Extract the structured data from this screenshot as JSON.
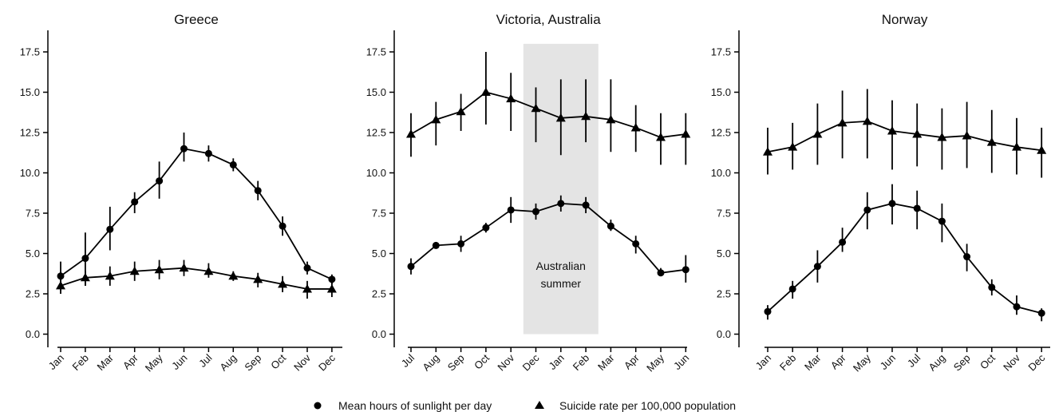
{
  "legend": {
    "circle_label": "Mean hours of sunlight per day",
    "triangle_label": "Suicide rate per 100,000 population",
    "placement": "bottom-center"
  },
  "colors": {
    "series": "#000000",
    "axis": "#000000",
    "shade": "#e4e4e4"
  },
  "chart_data": [
    {
      "type": "line",
      "title": "Greece",
      "categories": [
        "Jan",
        "Feb",
        "Mar",
        "Apr",
        "May",
        "Jun",
        "Jul",
        "Aug",
        "Sep",
        "Oct",
        "Nov",
        "Dec"
      ],
      "ylim": [
        0,
        18
      ],
      "yticks": [
        "0.0",
        "2.5",
        "5.0",
        "7.5",
        "10.0",
        "12.5",
        "15.0",
        "17.5"
      ],
      "grid": false,
      "series": [
        {
          "name": "Mean hours of sunlight per day",
          "marker": "circle",
          "values": [
            3.6,
            4.7,
            6.5,
            8.2,
            9.5,
            11.5,
            11.2,
            10.5,
            8.9,
            6.7,
            4.1,
            3.4
          ],
          "err_low": [
            2.7,
            3.0,
            5.2,
            7.5,
            8.4,
            10.7,
            10.7,
            10.1,
            8.3,
            6.1,
            3.7,
            3.1
          ],
          "err_high": [
            4.5,
            6.3,
            7.9,
            8.8,
            10.7,
            12.5,
            11.7,
            10.9,
            9.5,
            7.3,
            4.5,
            3.7
          ]
        },
        {
          "name": "Suicide rate per 100,000 population",
          "marker": "triangle",
          "values": [
            3.0,
            3.5,
            3.6,
            3.9,
            4.0,
            4.1,
            3.9,
            3.6,
            3.4,
            3.1,
            2.8,
            2.8
          ],
          "err_low": [
            2.5,
            3.0,
            3.0,
            3.3,
            3.4,
            3.6,
            3.5,
            3.3,
            2.9,
            2.6,
            2.2,
            2.3
          ],
          "err_high": [
            3.5,
            3.9,
            4.2,
            4.5,
            4.6,
            4.6,
            4.4,
            3.9,
            3.8,
            3.6,
            3.3,
            3.3
          ]
        }
      ]
    },
    {
      "type": "line",
      "title": "Victoria, Australia",
      "categories": [
        "Jul",
        "Aug",
        "Sep",
        "Oct",
        "Nov",
        "Dec",
        "Jan",
        "Feb",
        "Mar",
        "Apr",
        "May",
        "Jun"
      ],
      "ylim": [
        0,
        18
      ],
      "yticks": [
        "0.0",
        "2.5",
        "5.0",
        "7.5",
        "10.0",
        "12.5",
        "15.0",
        "17.5"
      ],
      "grid": false,
      "shaded_region": {
        "from": "Dec",
        "to": "Feb",
        "label_lines": [
          "Australian",
          "summer"
        ]
      },
      "series": [
        {
          "name": "Mean hours of sunlight per day",
          "marker": "circle",
          "values": [
            4.2,
            5.5,
            5.6,
            6.6,
            7.7,
            7.6,
            8.1,
            8.0,
            6.7,
            5.6,
            3.8,
            4.0
          ],
          "err_low": [
            3.7,
            5.5,
            5.1,
            6.3,
            6.9,
            7.1,
            7.6,
            7.5,
            6.4,
            5.0,
            3.6,
            3.2
          ],
          "err_high": [
            4.7,
            5.5,
            6.1,
            6.9,
            8.5,
            8.1,
            8.6,
            8.5,
            7.1,
            6.1,
            4.1,
            4.9
          ]
        },
        {
          "name": "Suicide rate per 100,000 population",
          "marker": "triangle",
          "values": [
            12.4,
            13.3,
            13.8,
            15.0,
            14.6,
            14.0,
            13.4,
            13.5,
            13.3,
            12.8,
            12.2,
            12.4
          ],
          "err_low": [
            11.0,
            11.7,
            12.6,
            13.0,
            12.6,
            11.9,
            11.1,
            11.9,
            11.3,
            11.3,
            10.5,
            10.5
          ],
          "err_high": [
            13.7,
            14.4,
            14.9,
            17.5,
            16.2,
            15.3,
            15.8,
            15.8,
            15.8,
            14.2,
            13.7,
            13.7
          ]
        }
      ]
    },
    {
      "type": "line",
      "title": "Norway",
      "categories": [
        "Jan",
        "Feb",
        "Mar",
        "Apr",
        "May",
        "Jun",
        "Jul",
        "Aug",
        "Sep",
        "Oct",
        "Nov",
        "Dec"
      ],
      "ylim": [
        0,
        18
      ],
      "yticks": [
        "0.0",
        "2.5",
        "5.0",
        "7.5",
        "10.0",
        "12.5",
        "15.0",
        "17.5"
      ],
      "grid": false,
      "series": [
        {
          "name": "Mean hours of sunlight per day",
          "marker": "circle",
          "values": [
            1.4,
            2.8,
            4.2,
            5.7,
            7.7,
            8.1,
            7.8,
            7.0,
            4.8,
            2.9,
            1.7,
            1.3
          ],
          "err_low": [
            0.9,
            2.2,
            3.2,
            5.1,
            6.5,
            6.8,
            6.5,
            5.7,
            3.9,
            2.4,
            1.2,
            0.8
          ],
          "err_high": [
            1.8,
            3.3,
            5.2,
            6.6,
            8.8,
            9.3,
            8.9,
            8.1,
            5.6,
            3.4,
            2.4,
            1.6
          ]
        },
        {
          "name": "Suicide rate per 100,000 population",
          "marker": "triangle",
          "values": [
            11.3,
            11.6,
            12.4,
            13.1,
            13.2,
            12.6,
            12.4,
            12.2,
            12.3,
            11.9,
            11.6,
            11.4
          ],
          "err_low": [
            9.9,
            10.2,
            10.5,
            10.9,
            10.9,
            10.2,
            10.4,
            10.2,
            10.3,
            10.0,
            9.9,
            9.7
          ],
          "err_high": [
            12.8,
            13.1,
            14.3,
            15.1,
            15.2,
            14.5,
            14.3,
            14.0,
            14.4,
            13.9,
            13.4,
            12.8
          ]
        }
      ]
    }
  ]
}
